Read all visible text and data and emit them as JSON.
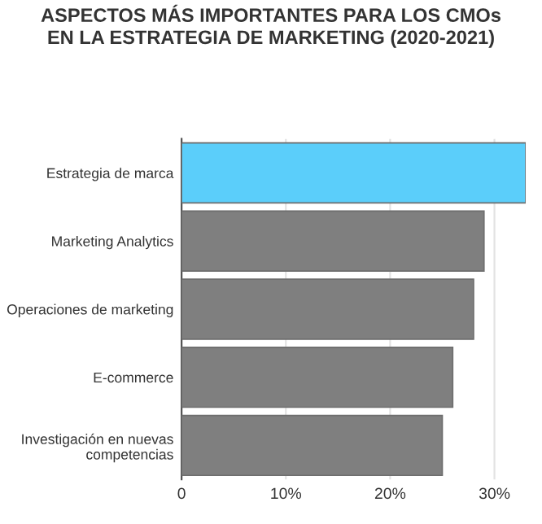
{
  "chart_data": {
    "type": "bar",
    "orientation": "horizontal",
    "title": "ASPECTOS MÁS IMPORTANTES PARA LOS CMOs\nEN LA ESTRATEGIA DE MARKETING (2020-2021)",
    "categories": [
      "Estrategia de marca",
      "Marketing Analytics",
      "Operaciones de marketing",
      "E-commerce",
      "Investigación en nuevas\ncompetencias"
    ],
    "values": [
      33,
      29,
      28,
      26,
      25
    ],
    "colors": [
      "#5bcefa",
      "#7f7f7f",
      "#7f7f7f",
      "#7f7f7f",
      "#7f7f7f"
    ],
    "xlim": [
      0,
      33
    ],
    "xticks": [
      0,
      {
        "value": 10,
        "label": "10%"
      },
      {
        "value": 20,
        "label": "20%"
      },
      {
        "value": 30,
        "label": "30%"
      }
    ],
    "grid": "x"
  }
}
